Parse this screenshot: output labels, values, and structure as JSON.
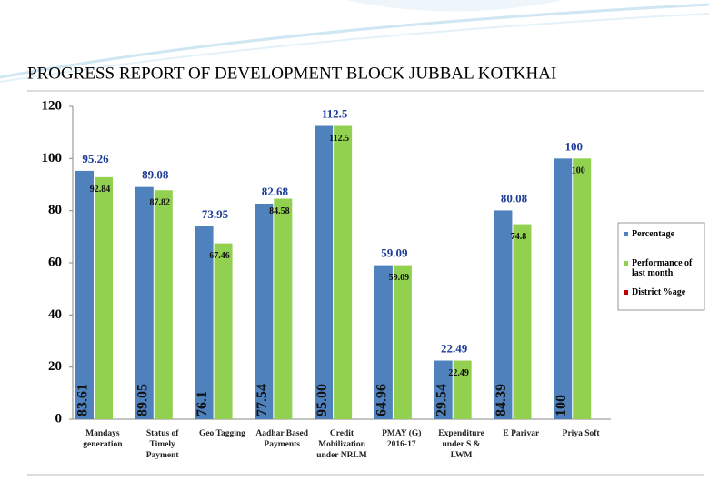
{
  "chart_data": {
    "type": "bar",
    "title": "PROGRESS REPORT OF DEVELOPMENT BLOCK JUBBAL KOTKHAI",
    "categories": [
      "Mandays generation",
      "Status of Timely Payment",
      "Geo Tagging",
      "Aadhar Based Payments",
      "Credit Mobilization under NRLM",
      "PMAY (G) 2016-17",
      "Expenditure under S & LWM",
      "E Parivar",
      "Priya Soft"
    ],
    "series": [
      {
        "name": "Percentage",
        "color": "#4f81bd",
        "values": [
          95.26,
          89.08,
          73.95,
          82.68,
          112.5,
          59.09,
          22.49,
          80.08,
          100
        ]
      },
      {
        "name": "Performance of last month",
        "color": "#92d050",
        "values": [
          92.84,
          87.82,
          67.46,
          84.58,
          112.5,
          59.09,
          22.49,
          74.8,
          100
        ]
      },
      {
        "name": "District %age",
        "color": "#c00000",
        "values": [
          83.61,
          89.05,
          76.1,
          77.54,
          95,
          64.96,
          29.54,
          84.39,
          100
        ],
        "value_labels": [
          "83.61",
          "89.05",
          "76.1",
          "77.54",
          "95.00",
          "64.96",
          "29.54",
          "84.39",
          "100"
        ]
      }
    ],
    "ylim": [
      0,
      120
    ],
    "yticks": [
      0,
      20,
      40,
      60,
      80,
      100,
      120
    ],
    "grid": false,
    "legend": "right"
  }
}
